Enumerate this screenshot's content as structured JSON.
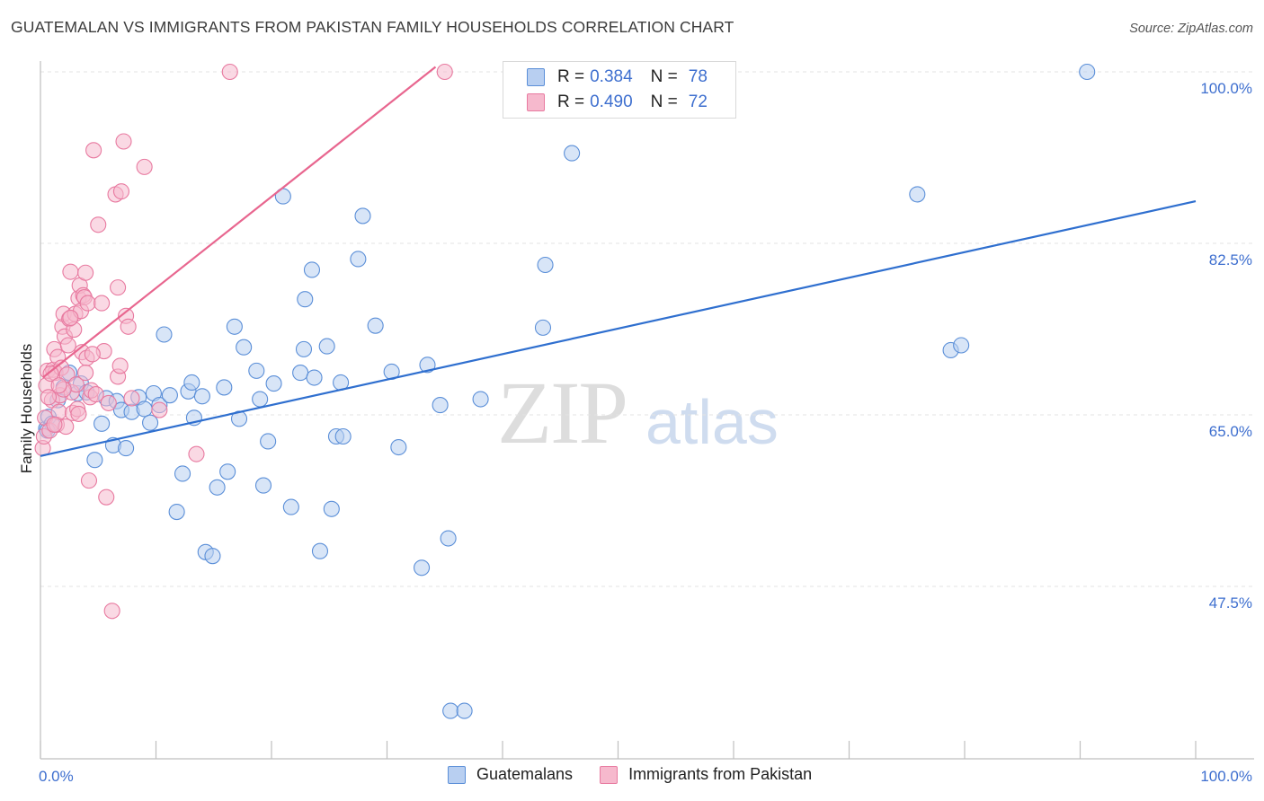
{
  "title": "GUATEMALAN VS IMMIGRANTS FROM PAKISTAN FAMILY HOUSEHOLDS CORRELATION CHART",
  "source": "Source: ZipAtlas.com",
  "watermark": {
    "zip": "ZIP",
    "atlas": "atlas"
  },
  "colors": {
    "blue_fill": "#b8cff1",
    "blue_stroke": "#5b8fd8",
    "blue_line": "#2f6fcf",
    "pink_fill": "#f6b9cd",
    "pink_stroke": "#e87aa0",
    "pink_line": "#e8668f",
    "grid": "#e3e3e3",
    "axis_text": "#3e6fcf"
  },
  "legend": {
    "rows": [
      {
        "r_label": "R =",
        "r_value": "0.384",
        "n_label": "N =",
        "n_value": "78",
        "color": "#b8cff1"
      },
      {
        "r_label": "R =",
        "r_value": "0.490",
        "n_label": "N =",
        "n_value": "72",
        "color": "#f6b9cd"
      }
    ]
  },
  "bottom_legend": [
    {
      "label": "Guatemalans",
      "color": "#b8cff1"
    },
    {
      "label": "Immigrants from Pakistan",
      "color": "#f6b9cd"
    }
  ],
  "chart_data": {
    "type": "scatter",
    "title": "GUATEMALAN VS IMMIGRANTS FROM PAKISTAN FAMILY HOUSEHOLDS CORRELATION CHART",
    "xlabel": "",
    "ylabel": "Family Households",
    "xlim": [
      0,
      100
    ],
    "ylim": [
      31.0,
      101.5
    ],
    "x_tick_labels": [
      "0.0%",
      "100.0%"
    ],
    "y_ticks": [
      47.5,
      65.0,
      82.5,
      100.0
    ],
    "y_tick_labels": [
      "47.5%",
      "65.0%",
      "82.5%",
      "100.0%"
    ],
    "grid": true,
    "legend_position": "top-center",
    "series": [
      {
        "name": "Guatemalans",
        "color": "#5b8fd8",
        "trend": {
          "x": [
            0,
            100
          ],
          "y": [
            60.8,
            86.8
          ]
        },
        "points": [
          [
            0.5,
            63.6
          ],
          [
            0.7,
            64.8
          ],
          [
            1.0,
            64.1
          ],
          [
            1.5,
            66.5
          ],
          [
            2.0,
            67.8
          ],
          [
            2.5,
            69.3
          ],
          [
            3.2,
            67.2
          ],
          [
            3.5,
            68.2
          ],
          [
            4.0,
            67.3
          ],
          [
            4.7,
            60.4
          ],
          [
            5.3,
            64.1
          ],
          [
            5.7,
            66.7
          ],
          [
            6.3,
            61.9
          ],
          [
            6.6,
            66.4
          ],
          [
            7.0,
            65.5
          ],
          [
            7.4,
            61.6
          ],
          [
            7.9,
            65.3
          ],
          [
            8.5,
            66.8
          ],
          [
            9.0,
            65.6
          ],
          [
            9.5,
            64.2
          ],
          [
            9.8,
            67.2
          ],
          [
            10.3,
            66.0
          ],
          [
            10.7,
            73.2
          ],
          [
            11.2,
            67.0
          ],
          [
            11.8,
            55.1
          ],
          [
            12.3,
            59.0
          ],
          [
            12.8,
            67.4
          ],
          [
            13.1,
            68.3
          ],
          [
            13.3,
            64.7
          ],
          [
            14.0,
            66.9
          ],
          [
            14.3,
            51.0
          ],
          [
            14.9,
            50.6
          ],
          [
            15.3,
            57.6
          ],
          [
            15.9,
            67.8
          ],
          [
            16.2,
            59.2
          ],
          [
            16.8,
            74.0
          ],
          [
            17.2,
            64.6
          ],
          [
            17.6,
            71.9
          ],
          [
            18.7,
            69.5
          ],
          [
            19.0,
            66.6
          ],
          [
            19.3,
            57.8
          ],
          [
            19.7,
            62.3
          ],
          [
            20.2,
            68.2
          ],
          [
            21.0,
            87.3
          ],
          [
            21.7,
            55.6
          ],
          [
            22.5,
            69.3
          ],
          [
            22.8,
            71.7
          ],
          [
            22.9,
            76.8
          ],
          [
            23.5,
            79.8
          ],
          [
            23.7,
            68.8
          ],
          [
            24.2,
            51.1
          ],
          [
            24.8,
            72.0
          ],
          [
            25.2,
            55.4
          ],
          [
            25.6,
            62.8
          ],
          [
            26.0,
            68.3
          ],
          [
            26.2,
            62.8
          ],
          [
            27.5,
            80.9
          ],
          [
            27.9,
            85.3
          ],
          [
            29.0,
            74.1
          ],
          [
            30.4,
            69.4
          ],
          [
            31.0,
            61.7
          ],
          [
            33.0,
            49.4
          ],
          [
            33.5,
            70.1
          ],
          [
            34.6,
            66.0
          ],
          [
            35.3,
            52.4
          ],
          [
            35.5,
            34.8
          ],
          [
            36.7,
            34.8
          ],
          [
            38.1,
            66.6
          ],
          [
            43.5,
            73.9
          ],
          [
            43.7,
            80.3
          ],
          [
            46.0,
            91.7
          ],
          [
            56.3,
            100.0
          ],
          [
            75.9,
            87.5
          ],
          [
            78.8,
            71.6
          ],
          [
            79.7,
            72.1
          ],
          [
            90.6,
            100.0
          ],
          [
            56.3,
            100.0
          ],
          [
            0.6,
            63.4
          ]
        ]
      },
      {
        "name": "Immigrants from Pakistan",
        "color": "#e87aa0",
        "trend": {
          "x": [
            0.2,
            34.2
          ],
          "y": [
            68.8,
            100.5
          ]
        },
        "points": [
          [
            0.2,
            61.6
          ],
          [
            0.3,
            62.8
          ],
          [
            0.4,
            64.7
          ],
          [
            0.5,
            68.0
          ],
          [
            0.6,
            69.5
          ],
          [
            0.8,
            63.4
          ],
          [
            1.0,
            66.5
          ],
          [
            1.1,
            69.6
          ],
          [
            1.2,
            71.7
          ],
          [
            1.3,
            69.3
          ],
          [
            1.4,
            64.0
          ],
          [
            1.5,
            70.9
          ],
          [
            1.6,
            65.3
          ],
          [
            1.7,
            67.0
          ],
          [
            1.8,
            69.8
          ],
          [
            1.9,
            74.0
          ],
          [
            2.0,
            75.3
          ],
          [
            2.1,
            73.0
          ],
          [
            2.2,
            63.8
          ],
          [
            2.3,
            69.1
          ],
          [
            2.4,
            72.1
          ],
          [
            2.5,
            74.8
          ],
          [
            2.6,
            79.6
          ],
          [
            2.7,
            67.3
          ],
          [
            2.8,
            65.2
          ],
          [
            2.9,
            73.7
          ],
          [
            3.0,
            75.3
          ],
          [
            3.1,
            68.1
          ],
          [
            3.2,
            65.6
          ],
          [
            3.3,
            76.9
          ],
          [
            3.4,
            78.2
          ],
          [
            3.5,
            75.6
          ],
          [
            3.6,
            71.4
          ],
          [
            3.7,
            77.2
          ],
          [
            3.8,
            77.0
          ],
          [
            3.9,
            79.5
          ],
          [
            4.0,
            70.8
          ],
          [
            4.1,
            76.4
          ],
          [
            4.2,
            58.3
          ],
          [
            4.3,
            66.8
          ],
          [
            4.4,
            67.5
          ],
          [
            4.6,
            92.0
          ],
          [
            4.8,
            67.1
          ],
          [
            5.0,
            84.4
          ],
          [
            5.3,
            76.4
          ],
          [
            5.5,
            71.5
          ],
          [
            5.7,
            56.6
          ],
          [
            5.9,
            66.2
          ],
          [
            6.2,
            45.0
          ],
          [
            6.5,
            87.5
          ],
          [
            6.7,
            68.9
          ],
          [
            6.9,
            70.0
          ],
          [
            6.7,
            78.0
          ],
          [
            7.0,
            87.8
          ],
          [
            7.2,
            92.9
          ],
          [
            7.4,
            75.1
          ],
          [
            7.6,
            74.0
          ],
          [
            7.9,
            66.7
          ],
          [
            9.0,
            90.3
          ],
          [
            10.3,
            65.5
          ],
          [
            13.5,
            61.0
          ],
          [
            16.4,
            100.0
          ],
          [
            35.0,
            100.0
          ],
          [
            0.9,
            69.2
          ],
          [
            1.2,
            64.0
          ],
          [
            2.0,
            67.6
          ],
          [
            3.3,
            65.1
          ],
          [
            4.5,
            71.2
          ],
          [
            2.6,
            74.9
          ],
          [
            1.6,
            68.0
          ],
          [
            0.7,
            66.8
          ],
          [
            3.9,
            69.3
          ]
        ]
      }
    ]
  }
}
